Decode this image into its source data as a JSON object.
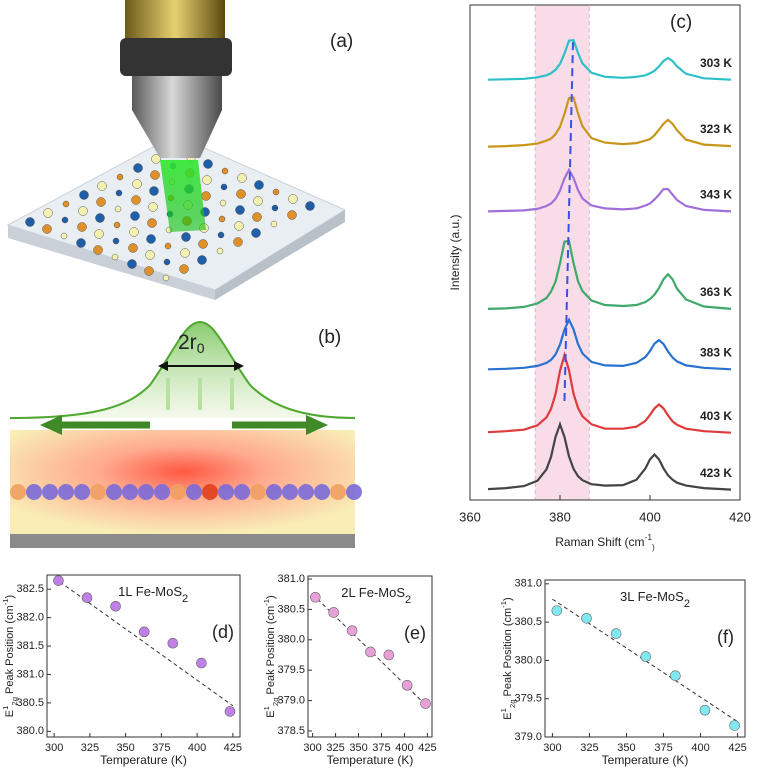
{
  "panels": {
    "a": {
      "label": "(a)"
    },
    "b": {
      "label": "(b)",
      "beam": [
        "2r",
        "0"
      ]
    }
  },
  "chart_data": [
    {
      "type": "line",
      "label": "(c)",
      "xlabel": [
        "Raman Shift (cm",
        "-1",
        ")"
      ],
      "ylabel": "Intensity (a.u.)",
      "x": [
        364,
        368,
        372,
        375,
        377,
        378,
        379,
        380,
        381,
        382,
        383,
        384,
        385,
        387,
        390,
        394,
        397,
        399,
        400,
        401,
        402,
        403,
        404,
        405,
        406,
        408,
        412,
        418
      ],
      "series": [
        {
          "name": "303 K",
          "color": "#2cc0c8",
          "values": [
            8.49,
            8.5,
            8.51,
            8.54,
            8.58,
            8.62,
            8.69,
            8.81,
            9.02,
            9.28,
            9.29,
            9.03,
            8.82,
            8.63,
            8.55,
            8.53,
            8.55,
            8.58,
            8.62,
            8.67,
            8.76,
            8.87,
            8.93,
            8.87,
            8.76,
            8.61,
            8.52,
            8.49
          ]
        },
        {
          "name": "323 K",
          "color": "#c8961a",
          "values": [
            7.14,
            7.15,
            7.17,
            7.2,
            7.26,
            7.3,
            7.39,
            7.54,
            7.8,
            8.12,
            8.13,
            7.81,
            7.55,
            7.31,
            7.22,
            7.19,
            7.21,
            7.26,
            7.29,
            7.37,
            7.48,
            7.6,
            7.68,
            7.6,
            7.47,
            7.28,
            7.18,
            7.15
          ]
        },
        {
          "name": "343 K",
          "color": "#a070d8",
          "values": [
            5.83,
            5.84,
            5.85,
            5.88,
            5.94,
            5.99,
            6.08,
            6.25,
            6.5,
            6.67,
            6.51,
            6.26,
            6.09,
            5.95,
            5.89,
            5.87,
            5.89,
            5.95,
            5.99,
            6.07,
            6.17,
            6.28,
            6.28,
            6.17,
            6.06,
            5.94,
            5.86,
            5.83
          ]
        },
        {
          "name": "363 K",
          "color": "#3fa86a",
          "values": [
            3.86,
            3.87,
            3.9,
            3.97,
            4.08,
            4.21,
            4.41,
            4.78,
            5.22,
            5.23,
            4.79,
            4.42,
            4.22,
            4.03,
            3.94,
            3.92,
            3.94,
            4.0,
            4.06,
            4.15,
            4.28,
            4.46,
            4.56,
            4.46,
            4.27,
            4.05,
            3.91,
            3.86
          ]
        },
        {
          "name": "383 K",
          "color": "#2a72d0",
          "values": [
            2.64,
            2.65,
            2.67,
            2.71,
            2.77,
            2.83,
            2.94,
            3.14,
            3.44,
            3.64,
            3.45,
            3.15,
            2.96,
            2.79,
            2.72,
            2.71,
            2.77,
            2.89,
            3.01,
            3.16,
            3.23,
            3.15,
            3.0,
            2.88,
            2.8,
            2.72,
            2.67,
            2.64
          ]
        },
        {
          "name": "403 K",
          "color": "#e03a3a",
          "values": [
            1.37,
            1.39,
            1.42,
            1.51,
            1.67,
            1.84,
            2.14,
            2.61,
            2.93,
            2.62,
            2.15,
            1.86,
            1.69,
            1.53,
            1.44,
            1.44,
            1.48,
            1.6,
            1.72,
            1.85,
            1.93,
            1.85,
            1.71,
            1.59,
            1.52,
            1.44,
            1.39,
            1.36
          ]
        },
        {
          "name": "423 K",
          "color": "#444444",
          "values": [
            0.22,
            0.24,
            0.28,
            0.39,
            0.62,
            0.87,
            1.27,
            1.53,
            1.27,
            0.88,
            0.63,
            0.48,
            0.4,
            0.32,
            0.29,
            0.3,
            0.41,
            0.64,
            0.82,
            0.92,
            0.82,
            0.64,
            0.5,
            0.41,
            0.35,
            0.29,
            0.24,
            0.21
          ]
        }
      ],
      "xlim": [
        360,
        420
      ],
      "xticks": [
        360,
        380,
        400,
        420
      ],
      "ylim": [
        0,
        10
      ],
      "highlight": [
        374.5,
        386.5
      ],
      "highlight_color": "#f6cfe0",
      "trend": {
        "x": [
          381.0,
          382.9
        ],
        "y": [
          2.0,
          9.3
        ],
        "color": "#3a4ee8"
      }
    },
    {
      "type": "scatter",
      "label": "(d)",
      "annotation": [
        "1L Fe-MoS",
        "2"
      ],
      "xlabel": "Temperature (K)",
      "ylabel": [
        "E",
        "1",
        "2g",
        " Peak Position (cm",
        "-1",
        ")"
      ],
      "color": "#c080e8",
      "x": [
        303,
        323,
        343,
        363,
        383,
        403,
        423
      ],
      "values": [
        382.65,
        382.35,
        382.2,
        381.75,
        381.55,
        381.2,
        380.35
      ],
      "fit": {
        "x": [
          300,
          425
        ],
        "y": [
          382.7,
          380.45
        ]
      },
      "xlim": [
        295,
        430
      ],
      "xticks": [
        300,
        325,
        350,
        375,
        400,
        425
      ],
      "ylim": [
        379.9,
        382.75
      ],
      "yticks": [
        {
          "value": 380,
          "label": "380.0"
        },
        {
          "value": 380.5,
          "label": "380.5"
        },
        {
          "value": 381,
          "label": "381.0"
        },
        {
          "value": 381.5,
          "label": "381.5"
        },
        {
          "value": 382,
          "label": "382.0"
        },
        {
          "value": 382.5,
          "label": "382.5"
        }
      ]
    },
    {
      "type": "scatter",
      "label": "(e)",
      "annotation": [
        "2L Fe-MoS",
        "2"
      ],
      "xlabel": "Temperature (K)",
      "ylabel": [
        "E",
        "1",
        "2g",
        " Peak Position (cm",
        "-1",
        ")"
      ],
      "color": "#e8a0d8",
      "x": [
        303,
        323,
        343,
        363,
        383,
        403,
        423
      ],
      "values": [
        380.7,
        380.45,
        380.15,
        379.8,
        379.75,
        379.25,
        378.95
      ],
      "fit": {
        "x": [
          300,
          425
        ],
        "y": [
          380.75,
          378.9
        ]
      },
      "xlim": [
        295,
        430
      ],
      "xticks": [
        300,
        325,
        350,
        375,
        400,
        425
      ],
      "ylim": [
        378.4,
        381.05
      ],
      "yticks": [
        {
          "value": 378.5,
          "label": "378.5"
        },
        {
          "value": 379,
          "label": "379.0"
        },
        {
          "value": 379.5,
          "label": "379.5"
        },
        {
          "value": 380,
          "label": "380.0"
        },
        {
          "value": 380.5,
          "label": "380.5"
        },
        {
          "value": 381,
          "label": "381.0"
        }
      ]
    },
    {
      "type": "scatter",
      "label": "(f)",
      "annotation": [
        "3L Fe-MoS",
        "2"
      ],
      "xlabel": "Temperature (K)",
      "ylabel": [
        "E",
        "1",
        "2g",
        " Peak Position (cm",
        "-1",
        ")"
      ],
      "color": "#80e8f0",
      "x": [
        303,
        323,
        343,
        363,
        383,
        403,
        423
      ],
      "values": [
        380.65,
        380.55,
        380.35,
        380.05,
        379.8,
        379.35,
        379.15
      ],
      "fit": {
        "x": [
          300,
          425
        ],
        "y": [
          380.8,
          379.2
        ]
      },
      "xlim": [
        295,
        430
      ],
      "xticks": [
        300,
        325,
        350,
        375,
        400,
        425
      ],
      "ylim": [
        379.0,
        381.05
      ],
      "yticks": [
        {
          "value": 379,
          "label": "379.0"
        },
        {
          "value": 379.5,
          "label": "379.5"
        },
        {
          "value": 380,
          "label": "380.0"
        },
        {
          "value": 380.5,
          "label": "380.5"
        },
        {
          "value": 381,
          "label": "381.0"
        }
      ]
    }
  ]
}
